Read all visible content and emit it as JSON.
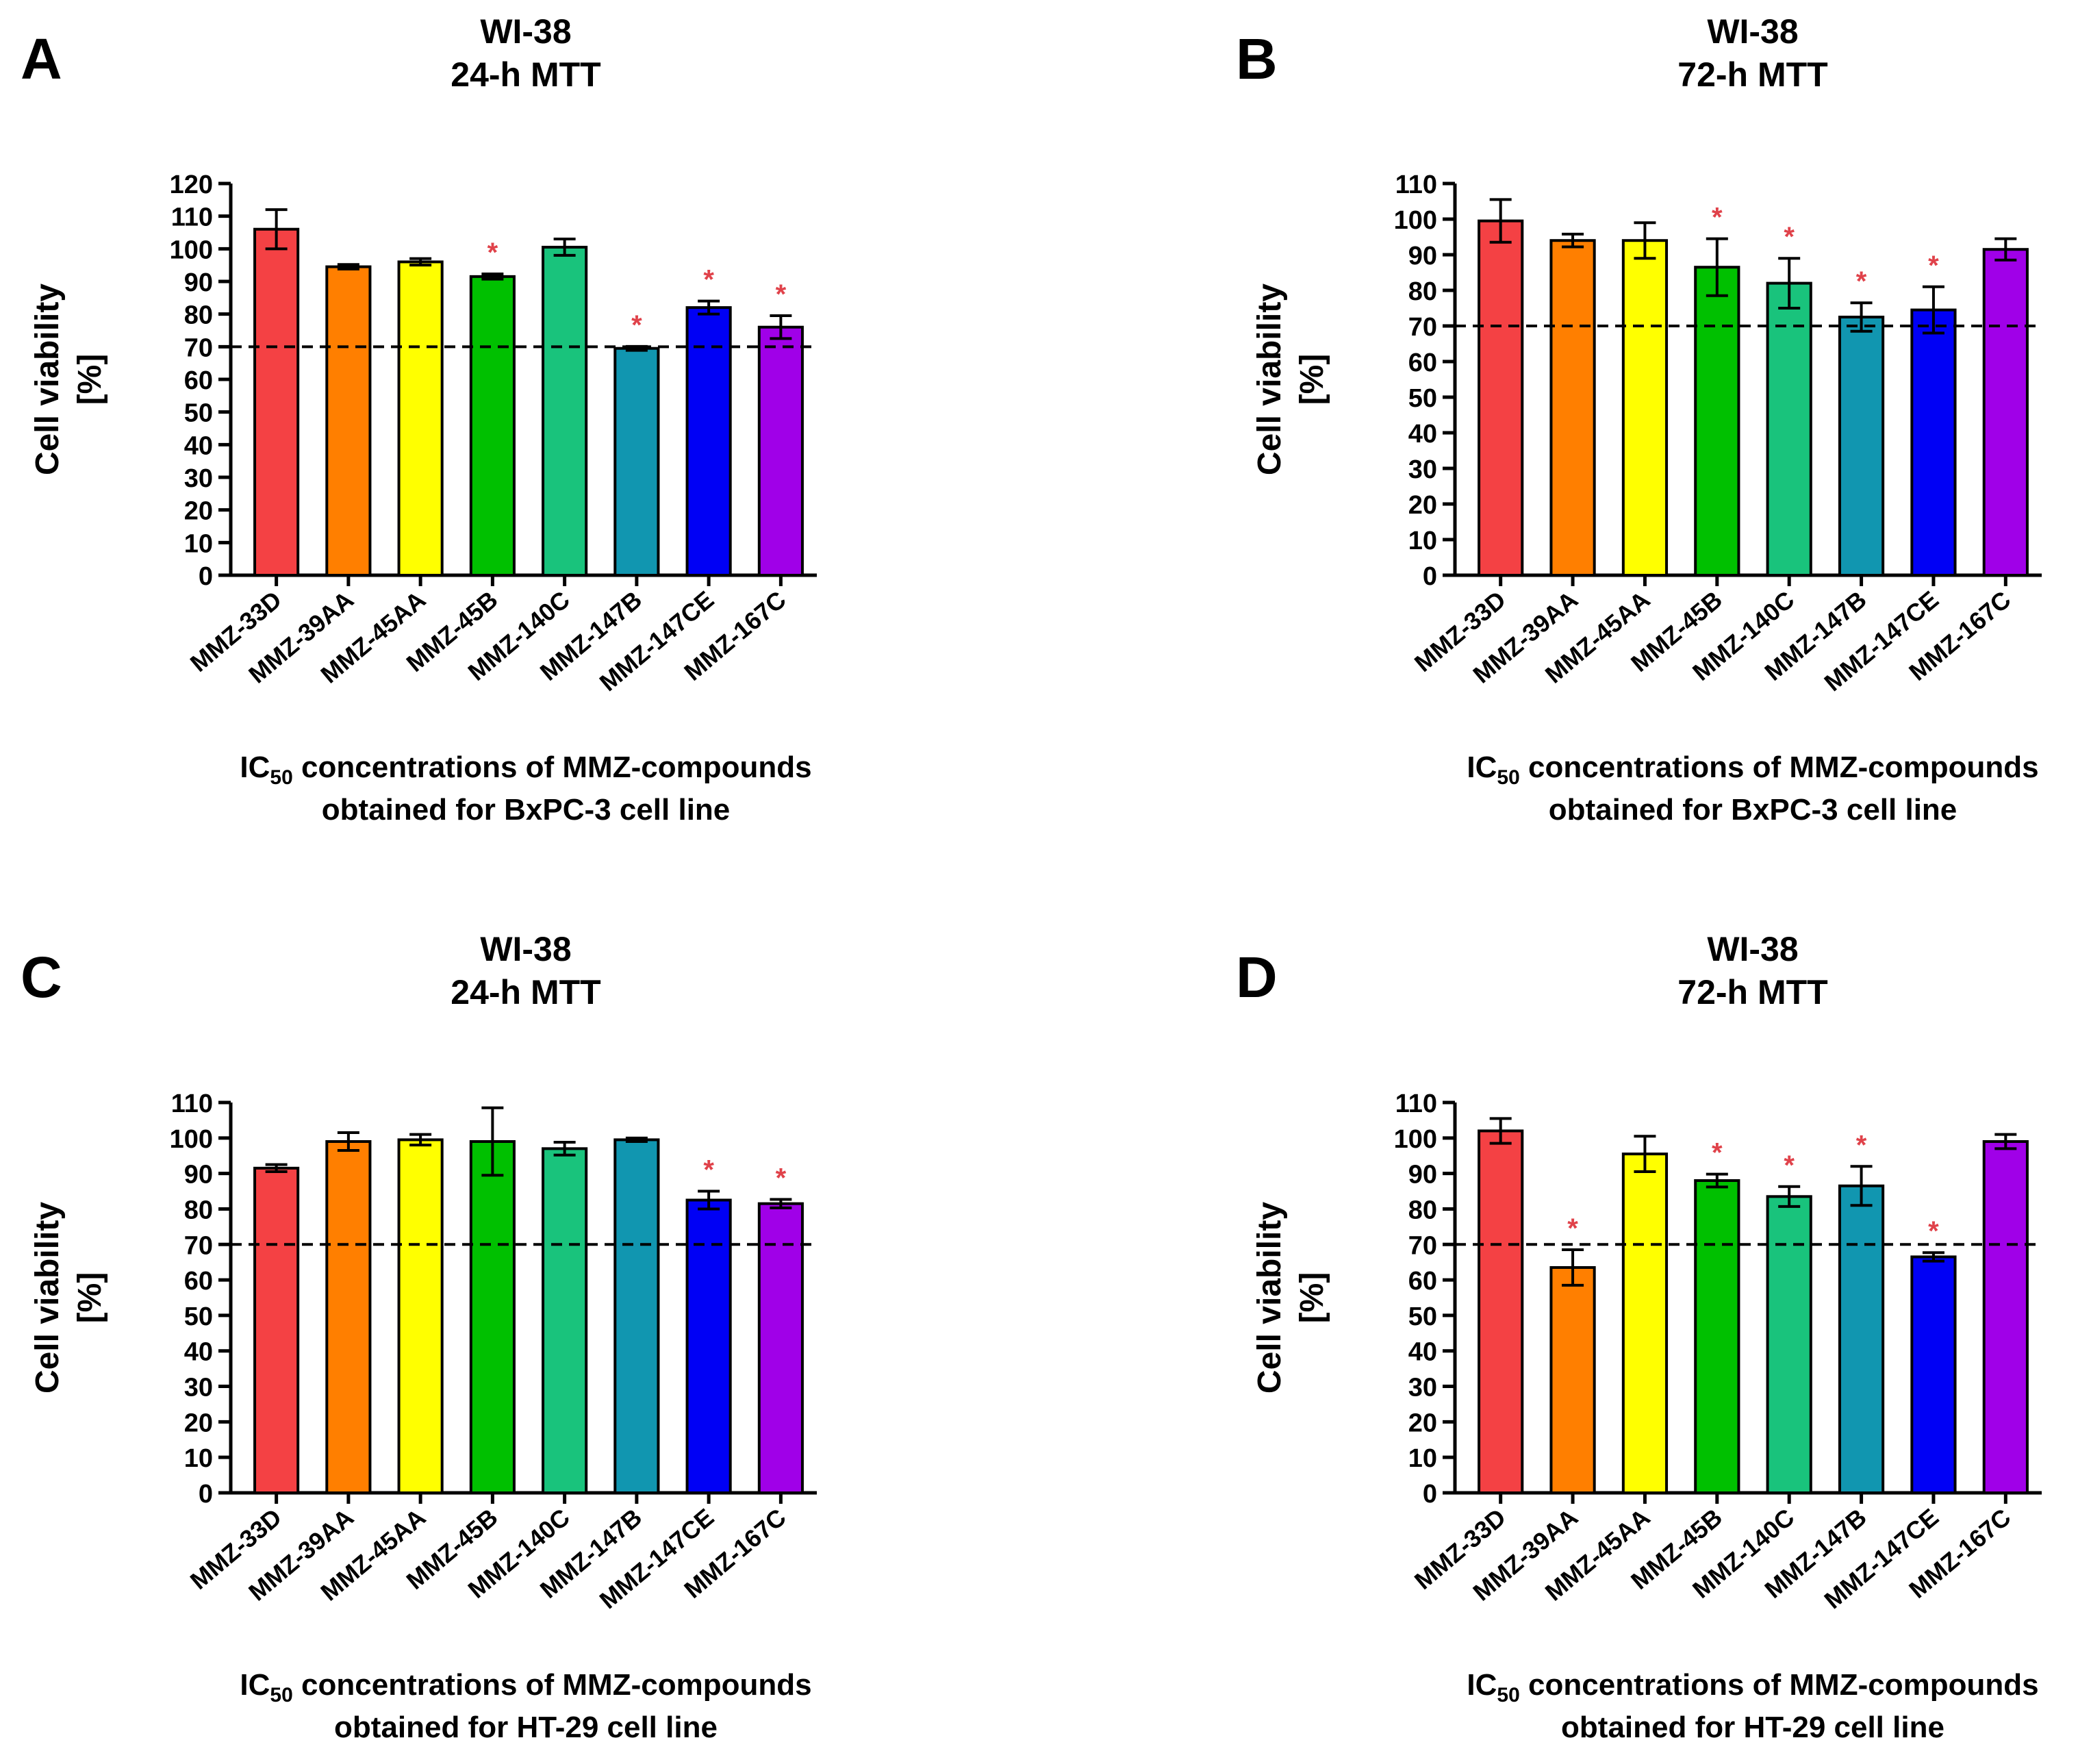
{
  "figure": {
    "reference_line_value": 70,
    "significance_marker": "*",
    "significance_color": "#e0424a",
    "bar_colors": [
      "#f44144",
      "#ff7f00",
      "#ffff00",
      "#00c000",
      "#19c37c",
      "#1196b0",
      "#0000f5",
      "#a000e8"
    ]
  },
  "chart_data": [
    {
      "panel": "A",
      "type": "bar",
      "title": [
        "WI-38",
        "24-h MTT"
      ],
      "ylabel": [
        "Cell viability",
        "[%]"
      ],
      "xlabel": [
        "IC",
        "50",
        " concentrations of MMZ-compounds",
        "obtained for BxPC-3 cell line"
      ],
      "categories": [
        "MMZ-33D",
        "MMZ-39AA",
        "MMZ-45AA",
        "MMZ-45B",
        "MMZ-140C",
        "MMZ-147B",
        "MMZ-147CE",
        "MMZ-167C"
      ],
      "values": [
        106,
        94.5,
        96,
        91.5,
        100.5,
        69.5,
        82,
        76
      ],
      "errors": [
        6,
        0.7,
        1,
        0.8,
        2.5,
        0.6,
        2,
        3.5
      ],
      "significant": [
        false,
        false,
        false,
        true,
        false,
        true,
        true,
        true
      ],
      "ylim": [
        0,
        120
      ],
      "yticks": [
        0,
        10,
        20,
        30,
        40,
        50,
        60,
        70,
        80,
        90,
        100,
        110,
        120
      ]
    },
    {
      "panel": "B",
      "type": "bar",
      "title": [
        "WI-38",
        "72-h MTT"
      ],
      "ylabel": [
        "Cell viability",
        "[%]"
      ],
      "xlabel": [
        "IC",
        "50",
        " concentrations of MMZ-compounds",
        "obtained for BxPC-3 cell line"
      ],
      "categories": [
        "MMZ-33D",
        "MMZ-39AA",
        "MMZ-45AA",
        "MMZ-45B",
        "MMZ-140C",
        "MMZ-147B",
        "MMZ-147CE",
        "MMZ-167C"
      ],
      "values": [
        99.5,
        94,
        94,
        86.5,
        82,
        72.5,
        74.5,
        91.5
      ],
      "errors": [
        6,
        1.8,
        5,
        8,
        7,
        4,
        6.5,
        3
      ],
      "significant": [
        false,
        false,
        false,
        true,
        true,
        true,
        true,
        false
      ],
      "ylim": [
        0,
        110
      ],
      "yticks": [
        0,
        10,
        20,
        30,
        40,
        50,
        60,
        70,
        80,
        90,
        100,
        110
      ]
    },
    {
      "panel": "C",
      "type": "bar",
      "title": [
        "WI-38",
        "24-h MTT"
      ],
      "ylabel": [
        "Cell viability",
        "[%]"
      ],
      "xlabel": [
        "IC",
        "50",
        " concentrations of MMZ-compounds",
        "obtained for HT-29 cell line"
      ],
      "categories": [
        "MMZ-33D",
        "MMZ-39AA",
        "MMZ-45AA",
        "MMZ-45B",
        "MMZ-140C",
        "MMZ-147B",
        "MMZ-147CE",
        "MMZ-167C"
      ],
      "values": [
        91.5,
        99,
        99.5,
        99,
        97,
        99.5,
        82.5,
        81.5
      ],
      "errors": [
        1,
        2.5,
        1.5,
        9.5,
        1.8,
        0.5,
        2.5,
        1.2
      ],
      "significant": [
        false,
        false,
        false,
        false,
        false,
        false,
        true,
        true
      ],
      "ylim": [
        0,
        110
      ],
      "yticks": [
        0,
        10,
        20,
        30,
        40,
        50,
        60,
        70,
        80,
        90,
        100,
        110
      ]
    },
    {
      "panel": "D",
      "type": "bar",
      "title": [
        "WI-38",
        "72-h MTT"
      ],
      "ylabel": [
        "Cell viability",
        "[%]"
      ],
      "xlabel": [
        "IC",
        "50",
        " concentrations of MMZ-compounds",
        "obtained for HT-29 cell line"
      ],
      "categories": [
        "MMZ-33D",
        "MMZ-39AA",
        "MMZ-45AA",
        "MMZ-45B",
        "MMZ-140C",
        "MMZ-147B",
        "MMZ-147CE",
        "MMZ-167C"
      ],
      "values": [
        102,
        63.5,
        95.5,
        88,
        83.5,
        86.5,
        66.5,
        99
      ],
      "errors": [
        3.5,
        5,
        5,
        1.8,
        2.8,
        5.5,
        1.2,
        2
      ],
      "significant": [
        false,
        true,
        false,
        true,
        true,
        true,
        true,
        false
      ],
      "ylim": [
        0,
        110
      ],
      "yticks": [
        0,
        10,
        20,
        30,
        40,
        50,
        60,
        70,
        80,
        90,
        100,
        110
      ]
    }
  ]
}
